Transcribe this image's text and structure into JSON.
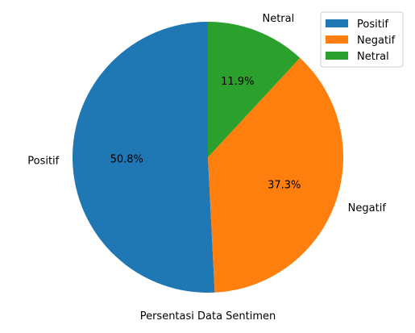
{
  "chart_data": {
    "type": "pie",
    "title": "",
    "xlabel": "Persentasi Data Sentimen",
    "categories": [
      "Positif",
      "Negatif",
      "Netral"
    ],
    "values": [
      50.8,
      37.3,
      11.9
    ],
    "value_labels": [
      "50.8%",
      "37.3%",
      "11.9%"
    ],
    "colors": [
      "#1f77b4",
      "#ff7f0e",
      "#2ca02c"
    ],
    "start_angle_deg": 90,
    "direction": "counterclockwise",
    "legend": {
      "placement": "upper right",
      "entries": [
        "Positif",
        "Negatif",
        "Netral"
      ]
    }
  }
}
